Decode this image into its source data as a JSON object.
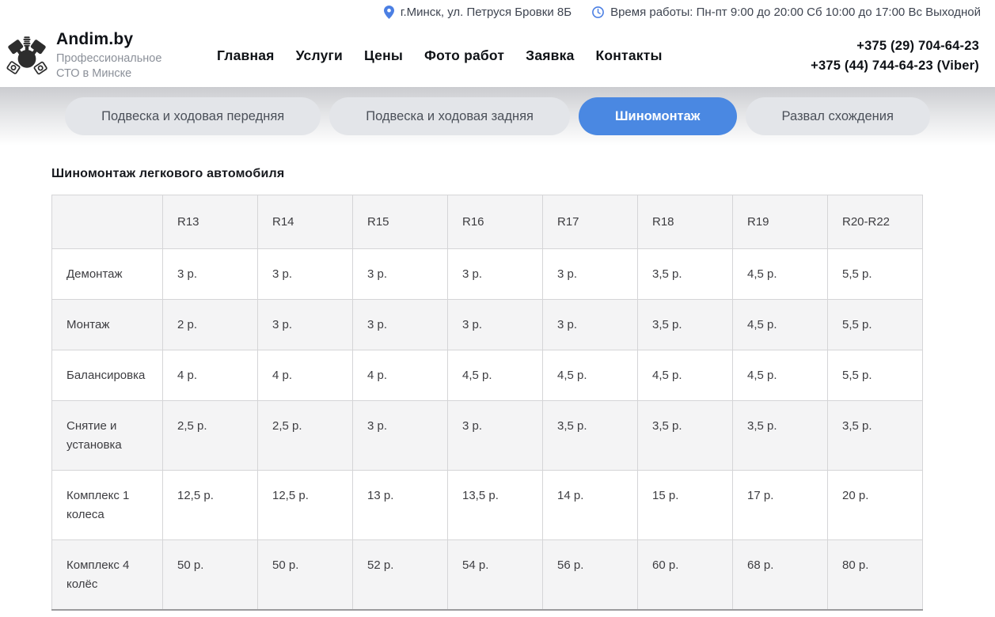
{
  "topbar": {
    "address": "г.Минск, ул. Петруся Бровки 8Б",
    "hours": "Время работы: Пн-пт 9:00 до 20:00 Сб 10:00 до 17:00 Вс Выходной"
  },
  "header": {
    "brand": "Andim.by",
    "tagline": "Профессиональное СТО в Минске",
    "nav": [
      {
        "id": "glavnaya",
        "label": "Главная"
      },
      {
        "id": "uslugi",
        "label": "Услуги"
      },
      {
        "id": "tseny",
        "label": "Цены"
      },
      {
        "id": "foto-rabot",
        "label": "Фото работ"
      },
      {
        "id": "zayavka",
        "label": "Заявка"
      },
      {
        "id": "kontakty",
        "label": "Контакты"
      }
    ],
    "phone1": "+375 (29) 704-64-23",
    "phone2": "+375 (44) 744-64-23 (Viber)"
  },
  "tabs": [
    {
      "id": "podveska-perednyaya",
      "label": "Подвеска и ходовая передняя",
      "active": false
    },
    {
      "id": "podveska-zadnyaya",
      "label": "Подвеска и ходовая задняя",
      "active": false
    },
    {
      "id": "shinomontazh",
      "label": "Шиномонтаж",
      "active": true
    },
    {
      "id": "razval-skhozhdeniya",
      "label": "Развал схождения",
      "active": false
    }
  ],
  "content": {
    "title": "Шиномонтаж легкового автомобиля"
  },
  "price_table": {
    "columns": [
      "",
      "R13",
      "R14",
      "R15",
      "R16",
      "R17",
      "R18",
      "R19",
      "R20-R22"
    ],
    "rows": [
      {
        "label": "Демонтаж",
        "values": [
          "3 р.",
          "3 р.",
          "3 р.",
          "3 р.",
          "3 р.",
          "3,5 р.",
          "4,5 р.",
          "5,5 р."
        ]
      },
      {
        "label": "Монтаж",
        "values": [
          "2 р.",
          "3 р.",
          "3 р.",
          "3 р.",
          "3 р.",
          "3,5 р.",
          "4,5 р.",
          "5,5 р."
        ]
      },
      {
        "label": "Балансировка",
        "values": [
          "4 р.",
          "4 р.",
          "4 р.",
          "4,5 р.",
          "4,5 р.",
          "4,5 р.",
          "4,5 р.",
          "5,5 р."
        ]
      },
      {
        "label": "Снятие и установка",
        "values": [
          "2,5 р.",
          "2,5 р.",
          "3 р.",
          "3 р.",
          "3,5 р.",
          "3,5 р.",
          "3,5 р.",
          "3,5 р."
        ]
      },
      {
        "label": "Комплекс  1 колеса",
        "values": [
          "12,5 р.",
          "12,5 р.",
          "13 р.",
          "13,5 р.",
          "14 р.",
          "15 р.",
          "17 р.",
          "20 р."
        ]
      },
      {
        "label": "Комплекс  4 колёс",
        "values": [
          "50 р.",
          "50 р.",
          "52 р.",
          "54 р.",
          "56 р.",
          "60 р.",
          "68 р.",
          "80 р."
        ]
      }
    ]
  },
  "icons": {
    "location_pin": "location-pin-icon",
    "clock": "clock-icon",
    "logo": "pistons-logo-icon"
  },
  "colors": {
    "accent_blue": "#4a88e2",
    "icon_blue": "#4b7fe3",
    "pill_gray": "#e3e5e9",
    "stripe_gray": "#f4f4f5",
    "border_gray": "#d5d5d7",
    "text_dark": "#0f1216",
    "text_muted": "#8b9099"
  }
}
